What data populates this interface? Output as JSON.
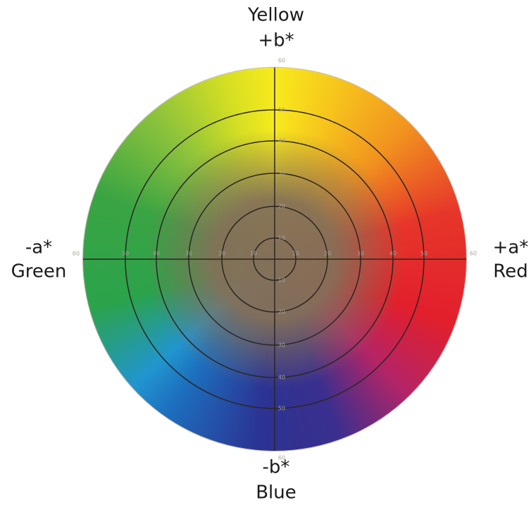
{
  "axes": {
    "top": {
      "name": "Yellow",
      "symbol": "+b*"
    },
    "left": {
      "symbol": "-a*",
      "name": "Green"
    },
    "right": {
      "symbol": "+a*",
      "name": "Red"
    },
    "bottom": {
      "symbol": "-b*",
      "name": "Blue"
    }
  },
  "ring_labels": [
    "10",
    "20",
    "30",
    "40",
    "50",
    "60"
  ]
}
